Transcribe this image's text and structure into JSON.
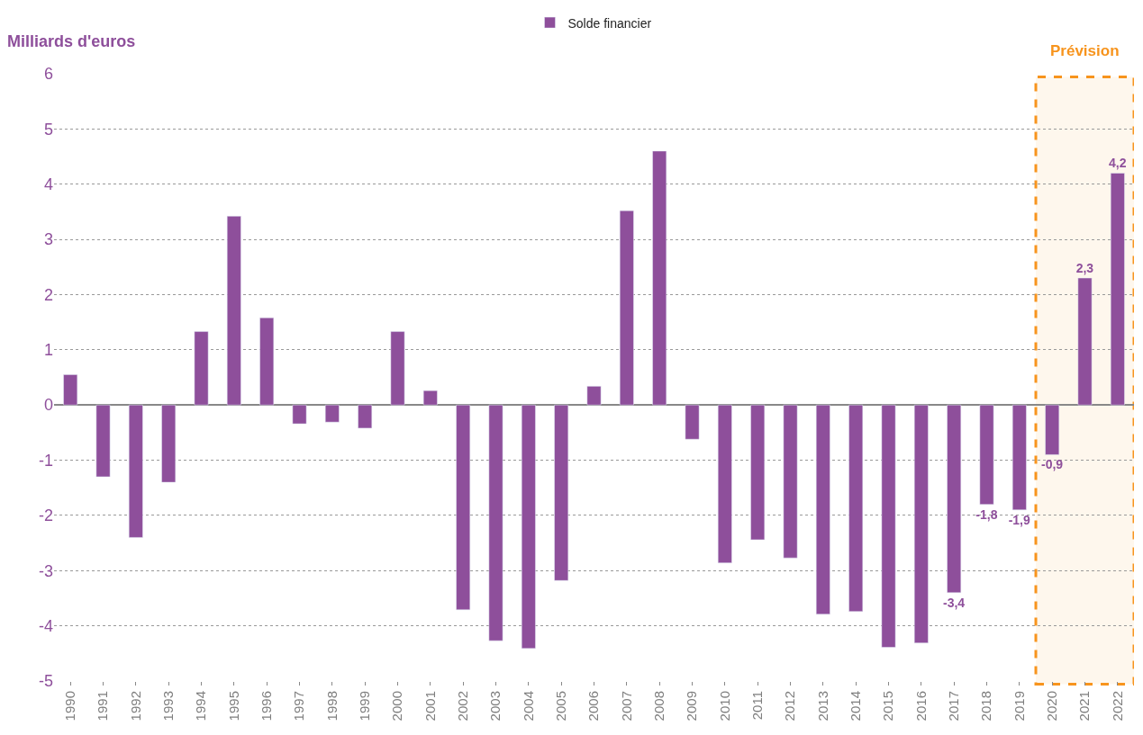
{
  "chart_data": {
    "type": "bar",
    "ylabel": "Milliards d'euros",
    "categories": [
      "1990",
      "1991",
      "1992",
      "1993",
      "1994",
      "1995",
      "1996",
      "1997",
      "1998",
      "1999",
      "2000",
      "2001",
      "2002",
      "2003",
      "2004",
      "2005",
      "2006",
      "2007",
      "2008",
      "2009",
      "2010",
      "2011",
      "2012",
      "2013",
      "2014",
      "2015",
      "2016",
      "2017",
      "2018",
      "2019",
      "2020",
      "2021",
      "2022"
    ],
    "series": [
      {
        "name": "Solde financier",
        "color": "#8e4f9b",
        "values": [
          0.55,
          -1.3,
          -2.4,
          -1.4,
          1.33,
          3.42,
          1.58,
          -0.34,
          -0.31,
          -0.42,
          1.33,
          0.26,
          -3.71,
          -4.27,
          -4.41,
          -3.18,
          0.34,
          3.52,
          4.6,
          -0.62,
          -2.86,
          -2.44,
          -2.77,
          -3.79,
          -3.74,
          -4.39,
          -4.31,
          -3.4,
          -1.8,
          -1.9,
          -0.9,
          2.3,
          4.2
        ],
        "value_labels": [
          null,
          null,
          null,
          null,
          null,
          null,
          null,
          null,
          null,
          null,
          null,
          null,
          null,
          null,
          null,
          null,
          null,
          null,
          null,
          null,
          null,
          null,
          null,
          null,
          null,
          null,
          null,
          "-3,4",
          "-1,8",
          "-1,9",
          "-0,9",
          "2,3",
          "4,2"
        ]
      }
    ],
    "ylim": [
      -5,
      6
    ],
    "yticks": [
      -5,
      -4,
      -3,
      -2,
      -1,
      0,
      1,
      2,
      3,
      4,
      5,
      6
    ],
    "grid": "y",
    "legend": "top",
    "bands": [
      {
        "axis": "x",
        "from": "2020",
        "to": "2022",
        "label": "Prévision",
        "color": "#f7941d"
      }
    ]
  }
}
